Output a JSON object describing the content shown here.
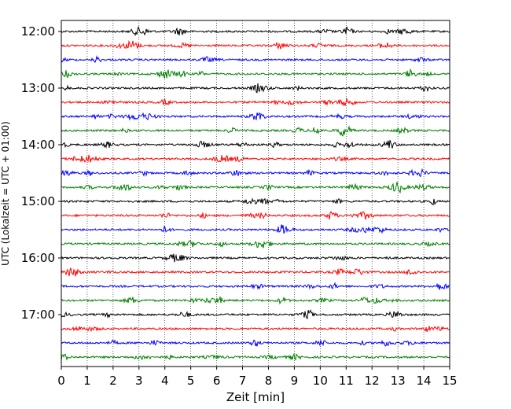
{
  "chart_data": {
    "type": "line",
    "title": "",
    "xlabel": "Zeit  [min]",
    "ylabel": "UTC (Lokalzeit = UTC + 01:00)",
    "xlim": [
      0,
      15
    ],
    "x_ticks": [
      "0",
      "1",
      "2",
      "3",
      "4",
      "5",
      "6",
      "7",
      "8",
      "9",
      "10",
      "11",
      "12",
      "13",
      "14",
      "15"
    ],
    "y_ticks": [
      "12:00",
      "13:00",
      "14:00",
      "15:00",
      "16:00",
      "17:00"
    ],
    "grid": {
      "x": true,
      "y": false,
      "style": "dotted"
    },
    "legend": "none",
    "series_colors": [
      "#000000",
      "#ff0000",
      "#0000ff",
      "#008000"
    ],
    "traces_per_hour": 4,
    "trace_minutes": 15,
    "series": [
      {
        "start": "12:00",
        "color": "#000000"
      },
      {
        "start": "12:15",
        "color": "#ff0000"
      },
      {
        "start": "12:30",
        "color": "#0000ff"
      },
      {
        "start": "12:45",
        "color": "#008000"
      },
      {
        "start": "13:00",
        "color": "#000000"
      },
      {
        "start": "13:15",
        "color": "#ff0000"
      },
      {
        "start": "13:30",
        "color": "#0000ff"
      },
      {
        "start": "13:45",
        "color": "#008000"
      },
      {
        "start": "14:00",
        "color": "#000000"
      },
      {
        "start": "14:15",
        "color": "#ff0000"
      },
      {
        "start": "14:30",
        "color": "#0000ff"
      },
      {
        "start": "14:45",
        "color": "#008000"
      },
      {
        "start": "15:00",
        "color": "#000000"
      },
      {
        "start": "15:15",
        "color": "#ff0000"
      },
      {
        "start": "15:30",
        "color": "#0000ff"
      },
      {
        "start": "15:45",
        "color": "#008000"
      },
      {
        "start": "16:00",
        "color": "#000000"
      },
      {
        "start": "16:15",
        "color": "#ff0000"
      },
      {
        "start": "16:30",
        "color": "#0000ff"
      },
      {
        "start": "16:45",
        "color": "#008000"
      },
      {
        "start": "17:00",
        "color": "#000000"
      },
      {
        "start": "17:15",
        "color": "#ff0000"
      },
      {
        "start": "17:30",
        "color": "#0000ff"
      },
      {
        "start": "17:45",
        "color": "#008000"
      }
    ]
  }
}
